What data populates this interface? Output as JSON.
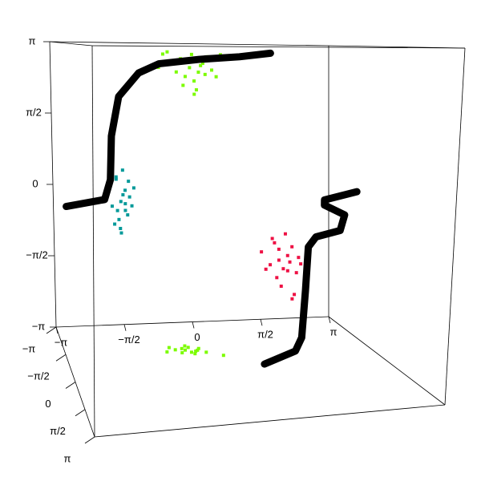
{
  "chart_data": {
    "type": "scatter3d",
    "xlim": [
      -3.14159,
      3.14159
    ],
    "ylim": [
      -3.14159,
      3.14159
    ],
    "zlim": [
      -3.14159,
      3.14159
    ],
    "xticks": [
      {
        "value": -3.14159,
        "label": "−π"
      },
      {
        "value": -1.5708,
        "label": "−π/2"
      },
      0,
      {
        "value": 1.5708,
        "label": "π/2"
      },
      {
        "value": 3.14159,
        "label": "π"
      }
    ],
    "yticks": [
      {
        "value": -3.14159,
        "label": "−π"
      },
      {
        "value": -1.5708,
        "label": "−π/2"
      },
      0,
      {
        "value": 1.5708,
        "label": "π/2"
      },
      {
        "value": 3.14159,
        "label": "π"
      }
    ],
    "zticks": [
      {
        "value": -3.14159,
        "label": "−π"
      },
      {
        "value": -1.5708,
        "label": "−π/2"
      },
      0,
      {
        "value": 1.5708,
        "label": "π/2"
      },
      {
        "value": 3.14159,
        "label": "π"
      }
    ],
    "series": [
      {
        "color": "#7cfc00",
        "x": [
          -0.6,
          -0.4,
          -0.3,
          -0.2,
          -0.1,
          0,
          0.05,
          0.1,
          0.2,
          0.3,
          0.4,
          0.5,
          0.6,
          -0.5,
          0.15,
          -0.15,
          0.25,
          0.35,
          -0.05,
          0.7,
          -0.7,
          0.1
        ],
        "y": [
          -3.14159,
          -3.14159,
          -3.14159,
          -3.14159,
          -3.14159,
          -3.14159,
          -3.14159,
          -3.14159,
          -3.14159,
          -3.14159,
          -3.14159,
          -3.14159,
          -3.14159,
          -3.14159,
          -3.14159,
          -3.14159,
          -3.14159,
          -3.14159,
          -3.14159,
          -3.14159,
          -3.14159,
          -3.14159
        ],
        "z": [
          2.9,
          2.7,
          2.5,
          2.8,
          2.4,
          2.6,
          2.9,
          2.3,
          2.5,
          2.7,
          2.85,
          2.55,
          2.4,
          2.95,
          2.1,
          2.2,
          2.65,
          2.45,
          2.75,
          2.9,
          2.6,
          2.0
        ]
      },
      {
        "color": "#009999",
        "x": [
          -1.9,
          -1.8,
          -1.7,
          -1.6,
          -1.5,
          -1.4,
          -1.3,
          -1.65,
          -1.55,
          -1.75,
          -1.45,
          -1.85,
          -1.6,
          -1.5,
          -1.7,
          -1.35,
          -1.95,
          -1.55,
          -1.62,
          -1.42,
          -1.68,
          -1.5
        ],
        "y": [
          -3.14159,
          -3.14159,
          -3.14159,
          -3.14159,
          -3.14159,
          -3.14159,
          -3.14159,
          -3.14159,
          -3.14159,
          -3.14159,
          -3.14159,
          -3.14159,
          -3.14159,
          -3.14159,
          -3.14159,
          -3.14159,
          -3.14159,
          -3.14159,
          -3.14159,
          -3.14159,
          -3.14159,
          -3.14159
        ],
        "z": [
          -0.2,
          -0.5,
          0.1,
          -0.4,
          -0.6,
          -0.3,
          -0.1,
          -0.8,
          0.3,
          -0.9,
          -0.7,
          0.0,
          -1.1,
          -0.45,
          0.15,
          -0.5,
          -0.35,
          -0.25,
          -1.0,
          0.05,
          -0.6,
          -0.15
        ]
      },
      {
        "color": "#ee1144",
        "x": [
          1.6,
          1.8,
          1.9,
          2.0,
          2.1,
          2.2,
          2.3,
          2.4,
          2.5,
          2.6,
          2.15,
          2.05,
          1.95,
          2.25,
          2.35,
          2.45,
          1.7,
          2.7,
          2.0,
          2.2,
          2.3,
          1.85
        ],
        "y": [
          -3.14159,
          -3.14159,
          -3.14159,
          -3.14159,
          -3.14159,
          -3.14159,
          -3.14159,
          -3.14159,
          -3.14159,
          -3.14159,
          -3.14159,
          -3.14159,
          -3.14159,
          -3.14159,
          -3.14159,
          -3.14159,
          -3.14159,
          -3.14159,
          -3.14159,
          -3.14159,
          -3.14159,
          -3.14159
        ],
        "z": [
          -1.6,
          -1.9,
          -1.4,
          -1.8,
          -2.0,
          -1.7,
          -1.5,
          -2.1,
          -1.9,
          -2.3,
          -1.2,
          -2.4,
          -2.2,
          -1.85,
          -2.6,
          -1.75,
          -2.0,
          -1.65,
          -1.55,
          -2.05,
          -2.7,
          -1.3
        ]
      },
      {
        "color": "#7cfc00",
        "x": [
          -1.0,
          -0.8,
          -0.7,
          -0.6,
          -0.5,
          -0.4,
          -0.3,
          -0.2,
          -0.55,
          -0.45,
          -0.65,
          -0.35,
          0.1,
          -0.9,
          -0.5
        ],
        "y": [
          -1.4,
          -1.5,
          -1.3,
          -1.45,
          -1.6,
          -1.35,
          -1.5,
          -1.25,
          -1.7,
          -1.2,
          -1.55,
          -1.4,
          -1.0,
          -1.65,
          -1.3
        ],
        "z": [
          -3.14159,
          -3.14159,
          -3.14159,
          -3.14159,
          -3.14159,
          -3.14159,
          -3.14159,
          -3.14159,
          -3.14159,
          -3.14159,
          -3.14159,
          -3.14159,
          -3.14159,
          -3.14159,
          -3.14159
        ]
      }
    ],
    "curves": [
      {
        "color": "#000000",
        "x": [
          -2.85,
          -1.97,
          -1.83,
          -1.79,
          -1.61,
          -1.15,
          -0.69,
          0.22,
          1.13,
          1.83
        ],
        "y": [
          -3.14159,
          -3.14159,
          -3.14159,
          -3.14159,
          -3.14159,
          -3.14159,
          -3.14159,
          -3.14159,
          -3.14159,
          -3.14159
        ],
        "z": [
          -0.49,
          -0.35,
          0.09,
          1.06,
          1.94,
          2.47,
          2.68,
          2.79,
          2.86,
          2.95
        ]
      },
      {
        "color": "#000000",
        "x": [
          3.04,
          2.36,
          2.36,
          2.79,
          2.7,
          2.19,
          2.03,
          1.98,
          1.91,
          1.61,
          0.76
        ],
        "y": [
          -1.5,
          -1.5,
          -1.5,
          -1.5,
          -1.5,
          -1.5,
          -1.5,
          -1.5,
          -1.5,
          -1.0,
          -0.31
        ],
        "z": [
          0.03,
          -0.13,
          -0.24,
          -0.46,
          -0.79,
          -0.91,
          -1.12,
          -2.03,
          -3.03,
          -3.14159,
          -3.14159
        ]
      }
    ]
  }
}
